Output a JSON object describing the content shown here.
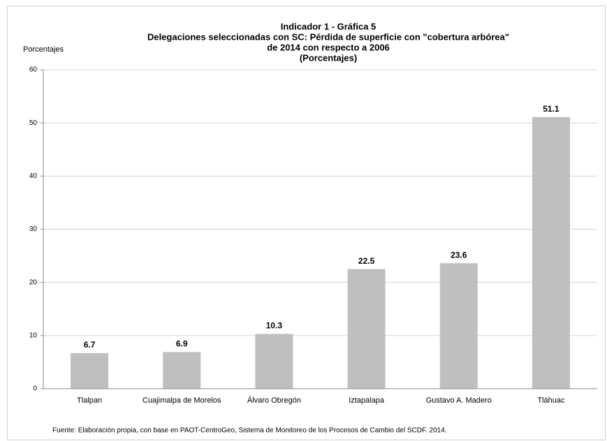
{
  "chart_data": {
    "type": "bar",
    "title": [
      "Indicador 1 - Gráfica 5",
      "Delegaciones seleccionadas con SC: Pérdida  de superficie con \"cobertura arbórea\"",
      "de 2014 con respecto a 2006",
      "(Porcentajes)"
    ],
    "y_axis_label": "Porcentajes",
    "categories": [
      "Tlalpan",
      "Cuajimalpa de Morelos",
      "Álvaro Obregón",
      "Iztapalapa",
      "Gustavo A. Madero",
      "Tláhuac"
    ],
    "values": [
      6.7,
      6.9,
      10.3,
      22.5,
      23.6,
      51.1
    ],
    "color": "#bfbfbf",
    "ylim": [
      0,
      60
    ],
    "yticks": [
      0,
      10,
      20,
      30,
      40,
      50,
      60
    ],
    "grid": true,
    "source": "Fuente: Elaboración propia, con base en PAOT-CentroGeo, Sistema de Monitoreo de los Procesos de Cambio del SCDF. 2014."
  }
}
